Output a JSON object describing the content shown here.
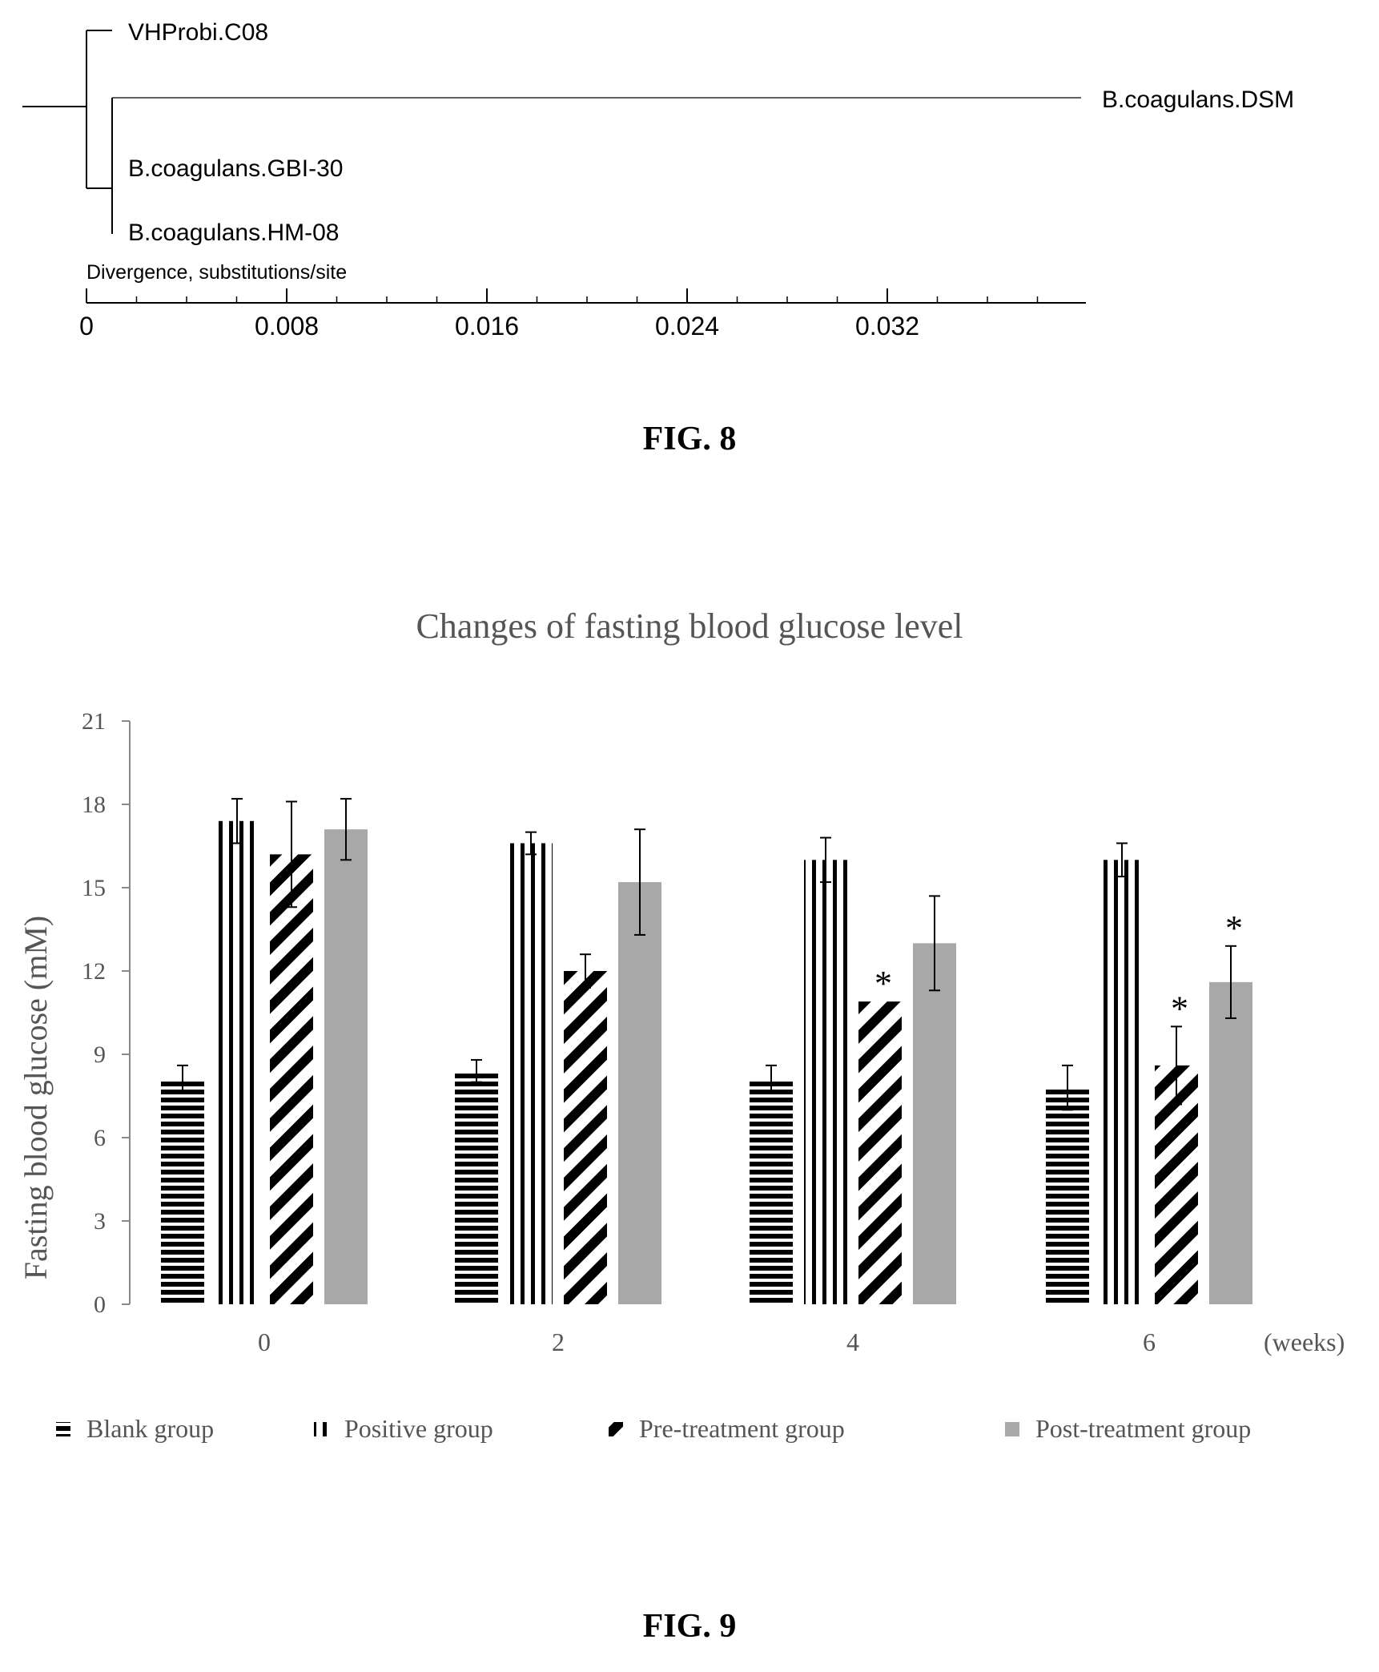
{
  "fig8": {
    "caption": "FIG. 8",
    "axis_label": "Divergence, substitutions/site",
    "chart_data": {
      "type": "tree",
      "leaves": [
        {
          "name": "VHProbi.C08",
          "branch_length": 0.0
        },
        {
          "name": "B.coagulans.DSM",
          "branch_length": 0.039
        },
        {
          "name": "B.coagulans.GBI-30",
          "branch_length": 0.0
        },
        {
          "name": "B.coagulans.HM-08",
          "branch_length": 0.0
        }
      ],
      "ticks": [
        "0",
        "0.008",
        "0.016",
        "0.024",
        "0.032"
      ],
      "xlim": [
        0,
        0.04
      ]
    }
  },
  "fig9": {
    "caption": "FIG. 9",
    "chart_data": {
      "type": "bar",
      "title": "Changes of fasting blood glucose level",
      "ylabel": "Fasting blood glucose (mM)",
      "xunit": "(weeks)",
      "categories": [
        "0",
        "2",
        "4",
        "6"
      ],
      "ylim": [
        0,
        21
      ],
      "yticks": [
        "0",
        "3",
        "6",
        "9",
        "12",
        "15",
        "18",
        "21"
      ],
      "series": [
        {
          "name": "Blank group",
          "pattern": "horizontal",
          "values": [
            8.1,
            8.4,
            8.1,
            7.8
          ],
          "errors": [
            0.5,
            0.4,
            0.5,
            0.8
          ],
          "sig": [
            false,
            false,
            false,
            false
          ]
        },
        {
          "name": "Positive group",
          "pattern": "vertical",
          "values": [
            17.4,
            16.6,
            16.0,
            16.0
          ],
          "errors": [
            0.8,
            0.4,
            0.8,
            0.6
          ],
          "sig": [
            false,
            false,
            false,
            false
          ]
        },
        {
          "name": "Pre-treatment group",
          "pattern": "diagonal",
          "values": [
            16.2,
            12.0,
            10.9,
            8.6
          ],
          "errors": [
            1.9,
            0.6,
            0.0,
            1.4
          ],
          "sig": [
            false,
            false,
            true,
            true
          ]
        },
        {
          "name": "Post-treatment group",
          "pattern": "gray",
          "values": [
            17.1,
            15.2,
            13.0,
            11.6
          ],
          "errors": [
            1.1,
            1.9,
            1.7,
            1.3
          ],
          "sig": [
            false,
            false,
            false,
            true
          ]
        }
      ],
      "sig_marker": "*",
      "grid": false,
      "legend_position": "bottom"
    }
  }
}
